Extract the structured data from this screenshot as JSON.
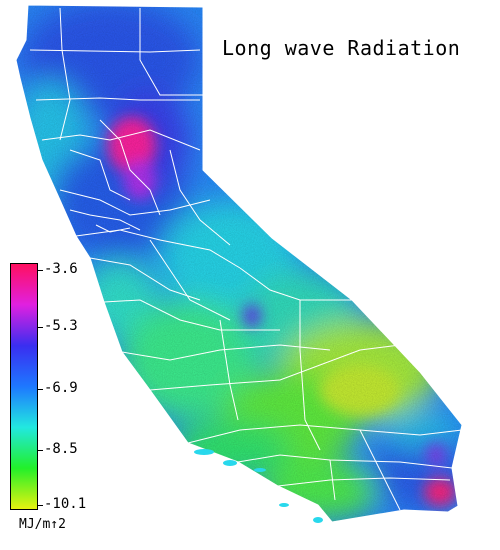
{
  "title": "Long wave Radiation",
  "legend": {
    "unit": "MJ/m↑2",
    "ticks": [
      "-3.6",
      "-5.3",
      "-6.9",
      "-8.5",
      "-10.1"
    ],
    "stops": [
      "#ff1060",
      "#e020e0",
      "#3a2ef0",
      "#1e78ff",
      "#22e8e0",
      "#22f02a",
      "#e6f210"
    ]
  },
  "map": {
    "region": "California",
    "colors": {
      "north_coast": "#2a6cff",
      "central_valley": "#28c8ec",
      "hotspot": "#ff20a0",
      "central_coast": "#3cf08c",
      "mojave": "#b8f03c",
      "south": "#3cec5c",
      "borders": "#ffffff"
    }
  }
}
